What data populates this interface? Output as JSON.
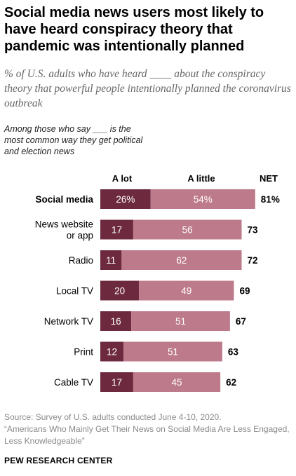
{
  "title": "Social media news users most likely to have heard conspiracy theory that pandemic was intentionally planned",
  "subtitle": "% of U.S. adults who have heard ____ about the conspiracy theory that powerful people intentionally planned the coronavirus outbreak",
  "note": "Among those who say ___ is the most common way they get political and election news",
  "source": "Source: Survey of U.S. adults conducted June 4-10, 2020.",
  "report": "“Americans Who Mainly Get Their News on Social Media Are Less Engaged, Less Knowledgeable”",
  "brand": "PEW RESEARCH CENTER",
  "colors": {
    "a_lot": "#6d2a3e",
    "a_little": "#bd7a8a",
    "text": "#000000"
  },
  "chart_data": {
    "type": "bar",
    "orientation": "horizontal",
    "stacked": true,
    "column_headers": {
      "a_lot": "A lot",
      "a_little": "A little",
      "net": "NET"
    },
    "categories": [
      "Social media",
      "News website or app",
      "Radio",
      "Local TV",
      "Network TV",
      "Print",
      "Cable TV"
    ],
    "category_lines": [
      [
        "Social media"
      ],
      [
        "News website",
        "or app"
      ],
      [
        "Radio"
      ],
      [
        "Local TV"
      ],
      [
        "Network TV"
      ],
      [
        "Print"
      ],
      [
        "Cable TV"
      ]
    ],
    "highlight_index": 0,
    "series": [
      {
        "name": "A lot",
        "values": [
          26,
          17,
          11,
          20,
          16,
          12,
          17
        ]
      },
      {
        "name": "A little",
        "values": [
          54,
          56,
          62,
          49,
          51,
          51,
          45
        ]
      }
    ],
    "net": [
      81,
      73,
      72,
      69,
      67,
      63,
      62
    ],
    "data_labels": {
      "a_lot": [
        "26%",
        "17",
        "11",
        "20",
        "16",
        "12",
        "17"
      ],
      "a_little": [
        "54%",
        "56",
        "62",
        "49",
        "51",
        "51",
        "45"
      ],
      "net": [
        "81%",
        "73",
        "72",
        "69",
        "67",
        "63",
        "62"
      ]
    }
  }
}
